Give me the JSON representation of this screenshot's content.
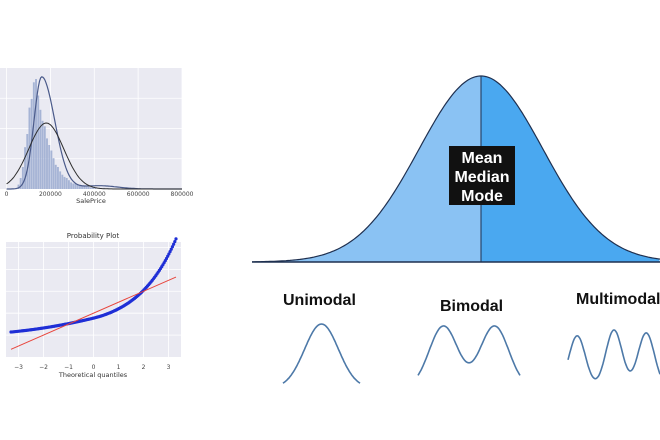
{
  "chart_data": [
    {
      "type": "bar",
      "subtype": "histogram-with-density",
      "xlabel": "SalePrice",
      "ylabel": "",
      "xlim": [
        -30000,
        800000
      ],
      "xticks": [
        "0",
        "200000",
        "400000",
        "600000",
        "800000"
      ],
      "xtick_values": [
        0,
        200000,
        400000,
        600000,
        800000
      ],
      "bin_width": 10000,
      "bins_start": [
        50000,
        60000,
        70000,
        80000,
        90000,
        100000,
        110000,
        120000,
        130000,
        140000,
        150000,
        160000,
        170000,
        180000,
        190000,
        200000,
        210000,
        220000,
        230000,
        240000,
        250000,
        260000,
        270000,
        280000,
        290000,
        300000,
        310000,
        320000,
        330000,
        340000,
        350000,
        360000,
        370000,
        380000,
        390000,
        400000,
        420000,
        440000,
        460000
      ],
      "bin_heights": [
        0.04,
        0.1,
        0.2,
        0.38,
        0.5,
        0.74,
        0.82,
        0.97,
        1.0,
        0.85,
        0.72,
        0.62,
        0.57,
        0.46,
        0.4,
        0.35,
        0.28,
        0.22,
        0.2,
        0.16,
        0.13,
        0.11,
        0.1,
        0.08,
        0.06,
        0.05,
        0.05,
        0.04,
        0.03,
        0.03,
        0.025,
        0.02,
        0.02,
        0.015,
        0.015,
        0.01,
        0.01,
        0.01,
        0.008
      ],
      "kde_peak": 160000,
      "normal_fit_mean": 181000,
      "normal_fit_peak_fraction": 0.6,
      "grid": true,
      "colors": {
        "bars": "#9aaad0",
        "kde": "#4a5a8a",
        "fit": "#2f2f2f",
        "background": "#eaeaf2"
      }
    },
    {
      "type": "scatter",
      "title": "Probability Plot",
      "xlabel": "Theoretical quantiles",
      "ylabel": "",
      "xlim": [
        -3.5,
        3.5
      ],
      "ylim": [
        -4,
        6.5
      ],
      "xticks": [
        "−3",
        "−2",
        "−1",
        "0",
        "1",
        "2",
        "3"
      ],
      "xtick_values": [
        -3,
        -2,
        -1,
        0,
        1,
        2,
        3
      ],
      "reference_line": {
        "slope": 1.0,
        "intercept": 0.0
      },
      "grid": true,
      "colors": {
        "points": "#1f2fd6",
        "line": "#e8453c",
        "background": "#eaeaf2"
      }
    },
    {
      "type": "area",
      "subtype": "normal-curve",
      "annotation": [
        "Mean",
        "Median",
        "Mode"
      ],
      "colors": {
        "left": "#8ac2f3",
        "right": "#4aa8f0",
        "center_line": "#1f3050",
        "label_box": "#111111"
      }
    },
    {
      "type": "line",
      "subtype": "modality-examples",
      "panels": [
        {
          "label": "Unimodal",
          "peaks": [
            [
              0.5,
              1.0
            ]
          ]
        },
        {
          "label": "Bimodal",
          "peaks": [
            [
              0.25,
              1.0
            ],
            [
              0.75,
              1.0
            ]
          ]
        },
        {
          "label": "Multimodal",
          "peaks": [
            [
              0.1,
              0.9
            ],
            [
              0.5,
              1.0
            ],
            [
              0.85,
              0.95
            ]
          ]
        }
      ],
      "colors": {
        "line": "#4d79a8"
      }
    }
  ]
}
